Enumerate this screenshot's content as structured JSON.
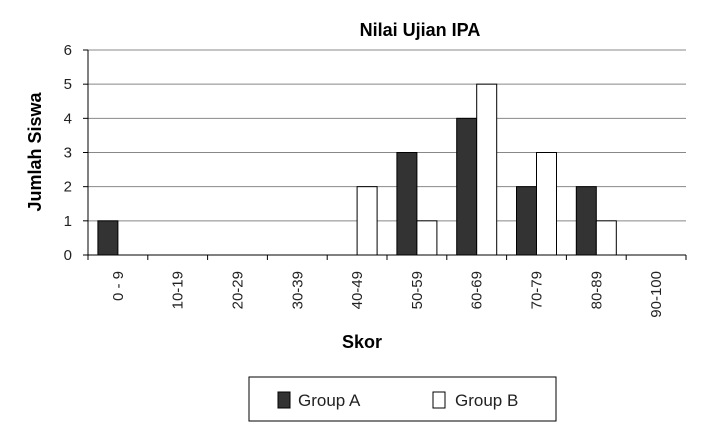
{
  "chart_data": {
    "type": "bar",
    "title": "Nilai Ujian IPA",
    "xlabel": "Skor",
    "ylabel": "Jumlah Siswa",
    "categories": [
      "0 - 9",
      "10-19",
      "20-29",
      "30-39",
      "40-49",
      "50-59",
      "60-69",
      "70-79",
      "80-89",
      "90-100"
    ],
    "series": [
      {
        "name": "Group A",
        "color": "#333333",
        "values": [
          1,
          0,
          0,
          0,
          0,
          3,
          4,
          2,
          2,
          0
        ]
      },
      {
        "name": "Group B",
        "color": "#ffffff",
        "values": [
          0,
          0,
          0,
          0,
          2,
          1,
          5,
          3,
          1,
          0
        ]
      }
    ],
    "ylim": [
      0,
      6
    ],
    "yticks": [
      0,
      1,
      2,
      3,
      4,
      5,
      6
    ],
    "grid": true,
    "legend": "bottom"
  }
}
